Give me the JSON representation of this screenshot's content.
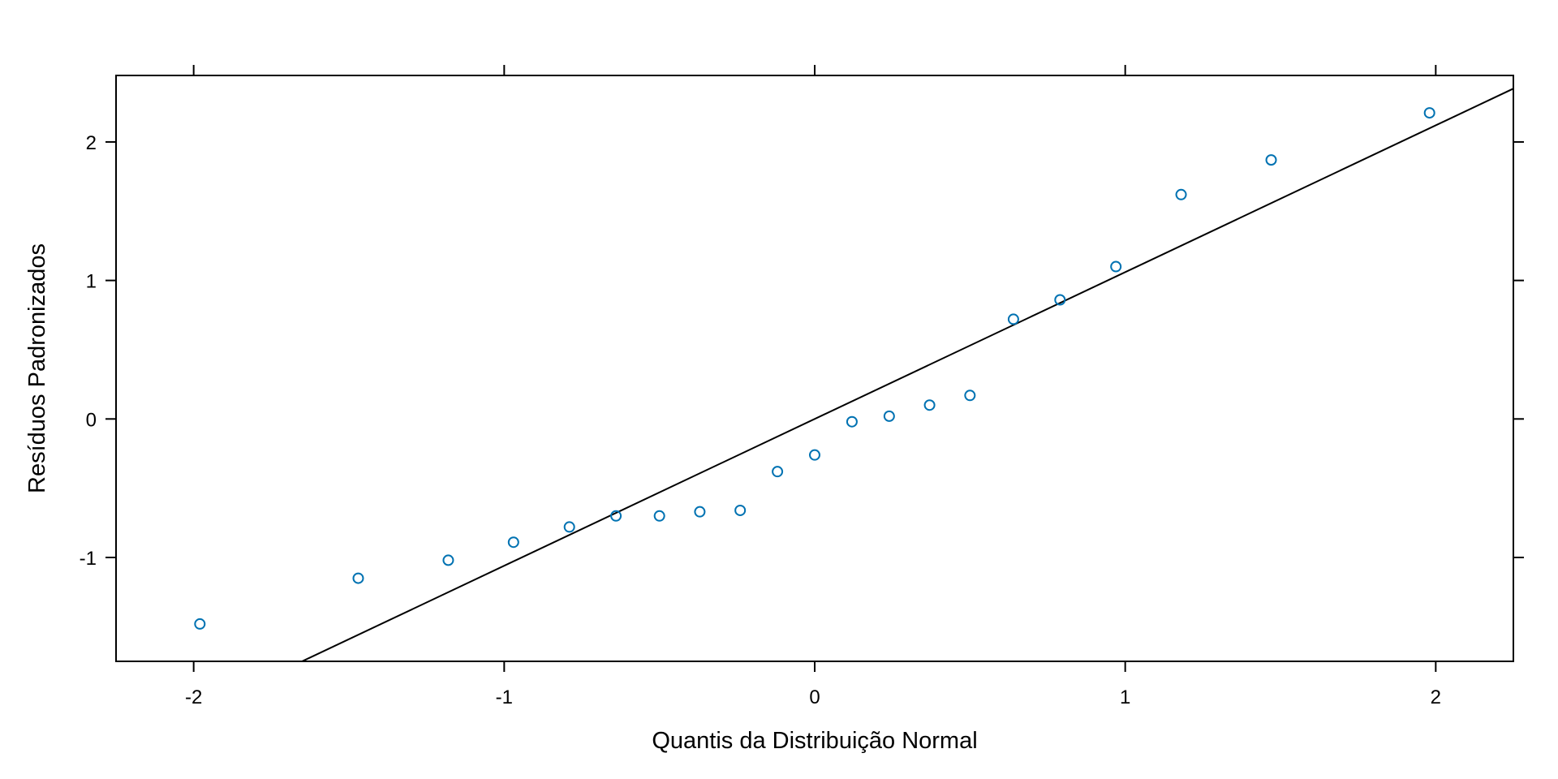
{
  "chart_data": {
    "type": "scatter",
    "title": "",
    "xlabel": "Quantis da Distribuição Normal",
    "ylabel": "Resíduos Padronizados",
    "xlim": [
      -2.25,
      2.25
    ],
    "ylim": [
      -1.75,
      2.48
    ],
    "x_ticks": [
      {
        "value": -2,
        "label": "-2"
      },
      {
        "value": -1,
        "label": "-1"
      },
      {
        "value": 0,
        "label": "0"
      },
      {
        "value": 1,
        "label": "1"
      },
      {
        "value": 2,
        "label": "2"
      }
    ],
    "y_ticks": [
      {
        "value": -1,
        "label": "-1"
      },
      {
        "value": 0,
        "label": "0"
      },
      {
        "value": 1,
        "label": "1"
      },
      {
        "value": 2,
        "label": "2"
      }
    ],
    "grid": false,
    "point_color": "#0072B2",
    "line_color": "#000000",
    "reference_line": {
      "intercept": 0.0,
      "slope": 1.06
    },
    "points": [
      {
        "x": -1.98,
        "y": -1.48
      },
      {
        "x": -1.47,
        "y": -1.15
      },
      {
        "x": -1.18,
        "y": -1.02
      },
      {
        "x": -0.97,
        "y": -0.89
      },
      {
        "x": -0.79,
        "y": -0.78
      },
      {
        "x": -0.64,
        "y": -0.7
      },
      {
        "x": -0.5,
        "y": -0.7
      },
      {
        "x": -0.37,
        "y": -0.67
      },
      {
        "x": -0.24,
        "y": -0.66
      },
      {
        "x": -0.12,
        "y": -0.38
      },
      {
        "x": 0.0,
        "y": -0.26
      },
      {
        "x": 0.12,
        "y": -0.02
      },
      {
        "x": 0.24,
        "y": 0.02
      },
      {
        "x": 0.37,
        "y": 0.1
      },
      {
        "x": 0.5,
        "y": 0.17
      },
      {
        "x": 0.64,
        "y": 0.72
      },
      {
        "x": 0.79,
        "y": 0.86
      },
      {
        "x": 0.97,
        "y": 1.1
      },
      {
        "x": 1.18,
        "y": 1.62
      },
      {
        "x": 1.47,
        "y": 1.87
      },
      {
        "x": 1.98,
        "y": 2.21
      }
    ]
  }
}
